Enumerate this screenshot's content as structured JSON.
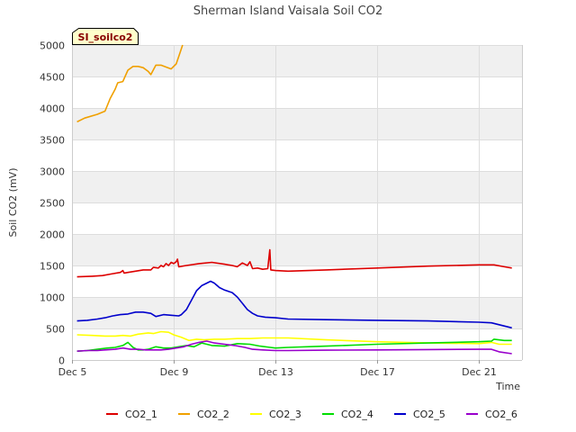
{
  "chart_data": {
    "type": "line",
    "title": "Sherman Island Vaisala Soil CO2",
    "site_label": "SI_soilco2",
    "xlabel": "Time",
    "ylabel": "Soil CO2 (mV)",
    "xlim": [
      5.0,
      22.7
    ],
    "ylim": [
      0,
      5000
    ],
    "x_ticks": [
      {
        "value": 5,
        "label": "Dec 5"
      },
      {
        "value": 9,
        "label": "Dec 9"
      },
      {
        "value": 13,
        "label": "Dec 13"
      },
      {
        "value": 17,
        "label": "Dec 17"
      },
      {
        "value": 21,
        "label": "Dec 21"
      }
    ],
    "y_ticks": [
      0,
      500,
      1000,
      1500,
      2000,
      2500,
      3000,
      3500,
      4000,
      4500,
      5000
    ],
    "colors": {
      "band": "#f0f0f0",
      "grid": "#dddddd",
      "axis": "#cccccc",
      "badge_bg": "#ffffcc"
    },
    "series": [
      {
        "name": "CO2_1",
        "color": "#dd0000",
        "points": [
          [
            5.2,
            1320
          ],
          [
            5.8,
            1330
          ],
          [
            6.2,
            1340
          ],
          [
            6.6,
            1370
          ],
          [
            6.9,
            1390
          ],
          [
            7.0,
            1420
          ],
          [
            7.05,
            1380
          ],
          [
            7.2,
            1390
          ],
          [
            7.5,
            1410
          ],
          [
            7.8,
            1430
          ],
          [
            8.1,
            1430
          ],
          [
            8.2,
            1470
          ],
          [
            8.4,
            1460
          ],
          [
            8.5,
            1500
          ],
          [
            8.6,
            1480
          ],
          [
            8.7,
            1530
          ],
          [
            8.8,
            1500
          ],
          [
            8.9,
            1550
          ],
          [
            9.0,
            1530
          ],
          [
            9.1,
            1560
          ],
          [
            9.15,
            1600
          ],
          [
            9.2,
            1480
          ],
          [
            9.5,
            1500
          ],
          [
            10.0,
            1530
          ],
          [
            10.5,
            1550
          ],
          [
            11.0,
            1520
          ],
          [
            11.3,
            1500
          ],
          [
            11.5,
            1480
          ],
          [
            11.7,
            1540
          ],
          [
            11.9,
            1500
          ],
          [
            12.0,
            1560
          ],
          [
            12.1,
            1450
          ],
          [
            12.3,
            1460
          ],
          [
            12.5,
            1440
          ],
          [
            12.7,
            1450
          ],
          [
            12.78,
            1750
          ],
          [
            12.82,
            1430
          ],
          [
            13.0,
            1420
          ],
          [
            13.5,
            1410
          ],
          [
            15.0,
            1430
          ],
          [
            17.0,
            1460
          ],
          [
            19.0,
            1490
          ],
          [
            21.0,
            1510
          ],
          [
            21.6,
            1510
          ],
          [
            22.0,
            1480
          ],
          [
            22.3,
            1460
          ]
        ]
      },
      {
        "name": "CO2_2",
        "color": "#f0a000",
        "points": [
          [
            5.2,
            3780
          ],
          [
            5.5,
            3840
          ],
          [
            6.0,
            3900
          ],
          [
            6.3,
            3950
          ],
          [
            6.5,
            4150
          ],
          [
            6.7,
            4300
          ],
          [
            6.8,
            4400
          ],
          [
            7.0,
            4420
          ],
          [
            7.2,
            4600
          ],
          [
            7.4,
            4660
          ],
          [
            7.6,
            4660
          ],
          [
            7.8,
            4640
          ],
          [
            8.0,
            4580
          ],
          [
            8.1,
            4530
          ],
          [
            8.3,
            4680
          ],
          [
            8.5,
            4680
          ],
          [
            8.7,
            4650
          ],
          [
            8.9,
            4620
          ],
          [
            9.1,
            4700
          ],
          [
            9.25,
            4880
          ],
          [
            9.35,
            5000
          ]
        ]
      },
      {
        "name": "CO2_3",
        "color": "#ffff00",
        "points": [
          [
            5.2,
            400
          ],
          [
            5.8,
            390
          ],
          [
            6.3,
            380
          ],
          [
            6.7,
            380
          ],
          [
            7.0,
            390
          ],
          [
            7.3,
            380
          ],
          [
            7.6,
            410
          ],
          [
            8.0,
            430
          ],
          [
            8.2,
            420
          ],
          [
            8.5,
            450
          ],
          [
            8.8,
            440
          ],
          [
            9.0,
            400
          ],
          [
            9.3,
            360
          ],
          [
            9.6,
            310
          ],
          [
            9.9,
            330
          ],
          [
            10.2,
            320
          ],
          [
            10.6,
            330
          ],
          [
            11.0,
            330
          ],
          [
            11.5,
            340
          ],
          [
            12.0,
            340
          ],
          [
            12.5,
            350
          ],
          [
            13.0,
            350
          ],
          [
            13.5,
            350
          ],
          [
            15.0,
            320
          ],
          [
            17.0,
            290
          ],
          [
            19.0,
            270
          ],
          [
            21.0,
            260
          ],
          [
            21.5,
            280
          ],
          [
            21.8,
            250
          ],
          [
            22.3,
            250
          ]
        ]
      },
      {
        "name": "CO2_4",
        "color": "#00dd00",
        "points": [
          [
            5.2,
            140
          ],
          [
            5.6,
            150
          ],
          [
            6.0,
            170
          ],
          [
            6.4,
            190
          ],
          [
            6.7,
            200
          ],
          [
            7.0,
            230
          ],
          [
            7.2,
            280
          ],
          [
            7.4,
            200
          ],
          [
            7.6,
            160
          ],
          [
            7.8,
            160
          ],
          [
            8.0,
            170
          ],
          [
            8.3,
            210
          ],
          [
            8.6,
            190
          ],
          [
            8.9,
            190
          ],
          [
            9.2,
            210
          ],
          [
            9.5,
            230
          ],
          [
            9.8,
            210
          ],
          [
            10.1,
            270
          ],
          [
            10.5,
            230
          ],
          [
            11.0,
            220
          ],
          [
            11.5,
            260
          ],
          [
            12.0,
            250
          ],
          [
            12.4,
            220
          ],
          [
            12.8,
            200
          ],
          [
            13.0,
            190
          ],
          [
            13.5,
            200
          ],
          [
            15.0,
            220
          ],
          [
            17.0,
            250
          ],
          [
            19.0,
            270
          ],
          [
            21.0,
            290
          ],
          [
            21.5,
            300
          ],
          [
            21.6,
            330
          ],
          [
            22.0,
            310
          ],
          [
            22.3,
            310
          ]
        ]
      },
      {
        "name": "CO2_5",
        "color": "#0000cc",
        "points": [
          [
            5.2,
            620
          ],
          [
            5.6,
            630
          ],
          [
            6.0,
            650
          ],
          [
            6.3,
            670
          ],
          [
            6.6,
            700
          ],
          [
            6.9,
            720
          ],
          [
            7.2,
            730
          ],
          [
            7.5,
            760
          ],
          [
            7.8,
            760
          ],
          [
            8.1,
            740
          ],
          [
            8.3,
            690
          ],
          [
            8.6,
            720
          ],
          [
            8.9,
            710
          ],
          [
            9.2,
            700
          ],
          [
            9.3,
            720
          ],
          [
            9.5,
            800
          ],
          [
            9.7,
            950
          ],
          [
            9.9,
            1100
          ],
          [
            10.1,
            1180
          ],
          [
            10.3,
            1220
          ],
          [
            10.45,
            1250
          ],
          [
            10.6,
            1220
          ],
          [
            10.8,
            1150
          ],
          [
            11.0,
            1110
          ],
          [
            11.3,
            1070
          ],
          [
            11.5,
            1000
          ],
          [
            11.7,
            900
          ],
          [
            11.9,
            800
          ],
          [
            12.1,
            740
          ],
          [
            12.3,
            700
          ],
          [
            12.6,
            680
          ],
          [
            13.0,
            670
          ],
          [
            13.5,
            650
          ],
          [
            15.0,
            640
          ],
          [
            17.0,
            630
          ],
          [
            19.0,
            620
          ],
          [
            21.0,
            600
          ],
          [
            21.5,
            590
          ],
          [
            21.8,
            560
          ],
          [
            22.3,
            510
          ]
        ]
      },
      {
        "name": "CO2_6",
        "color": "#9900cc",
        "points": [
          [
            5.2,
            140
          ],
          [
            5.6,
            150
          ],
          [
            6.0,
            150
          ],
          [
            6.3,
            160
          ],
          [
            6.7,
            170
          ],
          [
            7.0,
            190
          ],
          [
            7.3,
            170
          ],
          [
            7.6,
            170
          ],
          [
            7.9,
            160
          ],
          [
            8.2,
            160
          ],
          [
            8.5,
            160
          ],
          [
            8.8,
            170
          ],
          [
            9.1,
            190
          ],
          [
            9.4,
            210
          ],
          [
            9.7,
            250
          ],
          [
            10.0,
            280
          ],
          [
            10.3,
            300
          ],
          [
            10.6,
            270
          ],
          [
            11.0,
            250
          ],
          [
            11.4,
            230
          ],
          [
            11.8,
            200
          ],
          [
            12.1,
            170
          ],
          [
            12.5,
            160
          ],
          [
            13.0,
            150
          ],
          [
            13.5,
            150
          ],
          [
            15.0,
            155
          ],
          [
            17.0,
            160
          ],
          [
            19.0,
            165
          ],
          [
            21.0,
            170
          ],
          [
            21.5,
            170
          ],
          [
            21.8,
            130
          ],
          [
            22.3,
            100
          ]
        ]
      }
    ]
  }
}
